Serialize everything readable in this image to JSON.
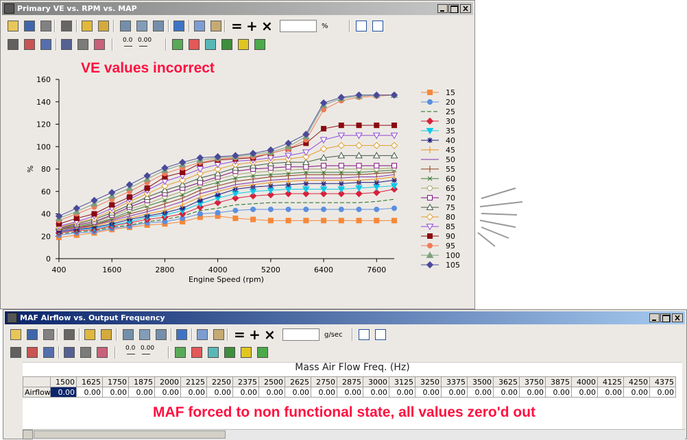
{
  "ve_window": {
    "title": "Primary VE vs. RPM vs. MAP",
    "toolbar": {
      "symbols": [
        "=",
        "+",
        "×"
      ],
      "unit": "%",
      "icon_labels": [
        "0.0",
        "0.00"
      ]
    },
    "annotation": "VE values incorrect"
  },
  "chart_data": {
    "type": "line",
    "x_label": "Engine Speed (rpm)",
    "y_label": "%",
    "x": [
      400,
      800,
      1200,
      1600,
      2000,
      2400,
      2800,
      3200,
      3600,
      4000,
      4400,
      4800,
      5200,
      5600,
      6000,
      6400,
      6800,
      7200,
      7600,
      8000
    ],
    "xlim": [
      400,
      8000
    ],
    "xticks": [
      400,
      1600,
      2800,
      4000,
      5200,
      6400,
      7600
    ],
    "ylim": [
      0,
      160
    ],
    "yticks": [
      0,
      20,
      40,
      60,
      80,
      100,
      120,
      140,
      160
    ],
    "legend": "right",
    "series": [
      {
        "name": "15",
        "color": "#f5883a",
        "marker": "square",
        "hollow": false,
        "values": [
          19,
          21,
          23,
          26,
          28,
          30,
          31,
          33,
          37,
          38,
          36,
          35,
          34,
          34,
          34,
          34,
          34,
          34,
          34,
          34
        ]
      },
      {
        "name": "20",
        "color": "#5b8fe0",
        "marker": "circle",
        "hollow": false,
        "values": [
          21,
          23,
          24,
          27,
          29,
          32,
          33,
          36,
          40,
          41,
          43,
          44,
          44,
          44,
          44,
          44,
          44,
          44,
          44,
          45
        ]
      },
      {
        "name": "25",
        "color": "#1a6b1a",
        "marker": "none",
        "hollow": false,
        "dashed": true,
        "values": [
          22,
          24,
          25,
          28,
          30,
          33,
          35,
          38,
          43,
          45,
          48,
          49,
          50,
          50,
          50,
          50,
          50,
          50,
          51,
          53
        ]
      },
      {
        "name": "30",
        "color": "#d8203a",
        "marker": "diamond",
        "hollow": false,
        "values": [
          23,
          25,
          26,
          29,
          32,
          35,
          37,
          40,
          46,
          50,
          54,
          56,
          57,
          58,
          58,
          58,
          58,
          58,
          59,
          62
        ]
      },
      {
        "name": "35",
        "color": "#10c8e8",
        "marker": "triangle-down",
        "hollow": false,
        "values": [
          24,
          26,
          27,
          30,
          33,
          37,
          39,
          43,
          49,
          54,
          58,
          60,
          61,
          62,
          62,
          62,
          62,
          63,
          64,
          65
        ]
      },
      {
        "name": "40",
        "color": "#1a1a80",
        "marker": "star",
        "hollow": false,
        "values": [
          24,
          26,
          28,
          31,
          35,
          38,
          41,
          45,
          52,
          57,
          62,
          64,
          65,
          66,
          67,
          67,
          67,
          68,
          68,
          70
        ]
      },
      {
        "name": "45",
        "color": "#e8901a",
        "marker": "vline",
        "hollow": false,
        "values": [
          25,
          27,
          29,
          33,
          36,
          40,
          43,
          48,
          55,
          60,
          64,
          66,
          68,
          69,
          70,
          70,
          70,
          70,
          71,
          73
        ]
      },
      {
        "name": "50",
        "color": "#8030b0",
        "marker": "none",
        "hollow": false,
        "values": [
          25,
          27,
          30,
          34,
          38,
          42,
          46,
          51,
          58,
          62,
          66,
          68,
          70,
          71,
          72,
          72,
          72,
          73,
          73,
          75
        ]
      },
      {
        "name": "55",
        "color": "#8b3a1a",
        "marker": "vline",
        "hollow": false,
        "values": [
          26,
          28,
          30,
          35,
          40,
          44,
          49,
          54,
          61,
          65,
          69,
          71,
          73,
          74,
          75,
          75,
          75,
          75,
          76,
          77
        ]
      },
      {
        "name": "60",
        "color": "#3a7a3a",
        "marker": "x",
        "hollow": false,
        "values": [
          26,
          29,
          31,
          36,
          42,
          47,
          52,
          57,
          64,
          68,
          72,
          74,
          75,
          76,
          77,
          77,
          77,
          77,
          78,
          79
        ]
      },
      {
        "name": "65",
        "color": "#a0a868",
        "marker": "circle",
        "hollow": true,
        "values": [
          27,
          29,
          32,
          38,
          44,
          49,
          55,
          60,
          66,
          71,
          75,
          77,
          78,
          79,
          80,
          80,
          80,
          80,
          80,
          81
        ]
      },
      {
        "name": "70",
        "color": "#801080",
        "marker": "square",
        "hollow": true,
        "values": [
          27,
          30,
          33,
          39,
          46,
          52,
          58,
          63,
          68,
          73,
          78,
          80,
          81,
          82,
          82,
          83,
          83,
          83,
          83,
          83
        ]
      },
      {
        "name": "75",
        "color": "#405840",
        "marker": "triangle",
        "hollow": true,
        "values": [
          28,
          31,
          35,
          41,
          48,
          55,
          61,
          66,
          72,
          76,
          81,
          83,
          85,
          86,
          86,
          90,
          92,
          92,
          92,
          92
        ]
      },
      {
        "name": "80",
        "color": "#e0a030",
        "marker": "diamond",
        "hollow": true,
        "values": [
          28,
          32,
          36,
          43,
          51,
          58,
          65,
          70,
          76,
          80,
          84,
          86,
          88,
          89,
          91,
          98,
          101,
          101,
          101,
          101
        ]
      },
      {
        "name": "85",
        "color": "#9048d8",
        "marker": "triangle-down",
        "hollow": true,
        "values": [
          29,
          33,
          38,
          45,
          53,
          61,
          69,
          74,
          80,
          84,
          87,
          88,
          90,
          92,
          95,
          106,
          110,
          110,
          110,
          110
        ]
      },
      {
        "name": "90",
        "color": "#8b0a10",
        "marker": "square",
        "hollow": false,
        "values": [
          31,
          36,
          40,
          48,
          55,
          63,
          73,
          77,
          85,
          88,
          89,
          90,
          94,
          98,
          103,
          116,
          119,
          119,
          119,
          119
        ]
      },
      {
        "name": "95",
        "color": "#f07a5a",
        "marker": "circle",
        "hollow": false,
        "values": [
          34,
          40,
          46,
          53,
          60,
          68,
          76,
          81,
          86,
          89,
          90,
          91,
          94,
          98,
          106,
          133,
          141,
          144,
          145,
          146
        ]
      },
      {
        "name": "100",
        "color": "#7ea07e",
        "marker": "triangle",
        "hollow": false,
        "values": [
          36,
          42,
          49,
          56,
          63,
          71,
          79,
          84,
          88,
          90,
          91,
          93,
          95,
          100,
          109,
          137,
          143,
          145,
          146,
          146
        ]
      },
      {
        "name": "105",
        "color": "#4a4a9a",
        "marker": "diamond",
        "hollow": false,
        "values": [
          38,
          45,
          52,
          59,
          66,
          74,
          81,
          86,
          90,
          91,
          92,
          94,
          97,
          103,
          111,
          139,
          144,
          146,
          146,
          146
        ]
      }
    ]
  },
  "maf_window": {
    "title": "MAF Airflow vs. Output Frequency",
    "toolbar": {
      "symbols": [
        "=",
        "+",
        "×"
      ],
      "unit": "g/sec",
      "icon_labels": [
        "0.0",
        "0.00"
      ]
    },
    "annotation": "MAF forced to non functional state, all values zero'd out",
    "table": {
      "title": "Mass Air Flow Freq. (Hz)",
      "columns": [
        1500,
        1625,
        1750,
        1875,
        2000,
        2125,
        2250,
        2375,
        2500,
        2625,
        2750,
        2875,
        3000,
        3125,
        3250,
        3375,
        3500,
        3625,
        3750,
        3875,
        4000,
        4125,
        4250,
        4375
      ],
      "row_label": "Airflow",
      "values": [
        "0.00",
        "0.00",
        "0.00",
        "0.00",
        "0.00",
        "0.00",
        "0.00",
        "0.00",
        "0.00",
        "0.00",
        "0.00",
        "0.00",
        "0.00",
        "0.00",
        "0.00",
        "0.00",
        "0.00",
        "0.00",
        "0.00",
        "0.00",
        "0.00",
        "0.00",
        "0.00",
        "0.00"
      ]
    }
  }
}
